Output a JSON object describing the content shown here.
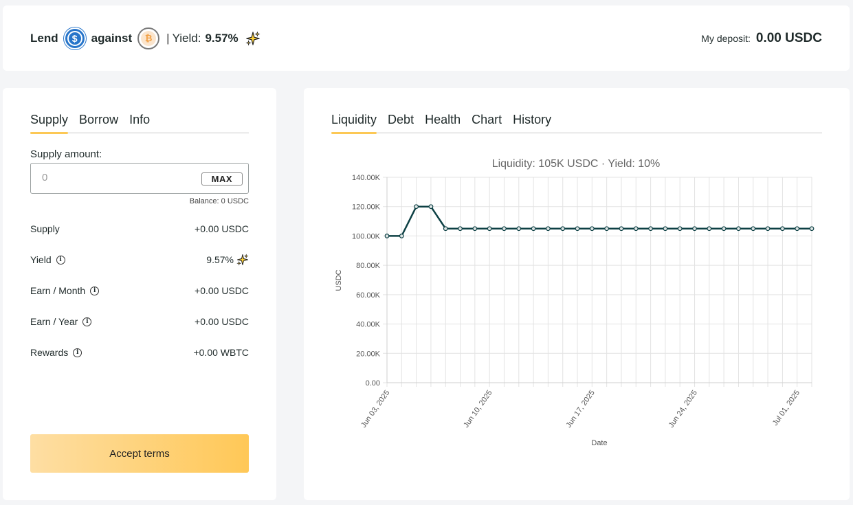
{
  "header": {
    "lend_label": "Lend",
    "against_label": "against",
    "separator": "|",
    "yield_label": "Yield:",
    "yield_value": "9.57%",
    "deposit_label": "My deposit:",
    "deposit_value": "0.00 USDC",
    "lend_token_icon": "usdc-coin-icon",
    "collateral_token_icon": "btc-coin-icon",
    "lend_token_glyph": "$",
    "collateral_token_glyph": "₿"
  },
  "left_panel": {
    "tabs": [
      {
        "label": "Supply",
        "active": true
      },
      {
        "label": "Borrow",
        "active": false
      },
      {
        "label": "Info",
        "active": false
      }
    ],
    "supply_label": "Supply amount:",
    "supply_input": {
      "value": "",
      "placeholder": "0"
    },
    "max_label": "MAX",
    "balance": "Balance: 0 USDC",
    "rows": [
      {
        "label": "Supply",
        "value": "+0.00 USDC"
      },
      {
        "label": "Yield",
        "value": "9.57%"
      },
      {
        "label": "Earn / Month",
        "value": "+0.00 USDC"
      },
      {
        "label": "Earn / Year",
        "value": "+0.00 USDC"
      },
      {
        "label": "Rewards",
        "value": "+0.00 WBTC"
      }
    ],
    "info_glyph": "i",
    "accept_label": "Accept terms"
  },
  "right_panel": {
    "tabs": [
      {
        "label": "Liquidity",
        "active": true
      },
      {
        "label": "Debt",
        "active": false
      },
      {
        "label": "Health",
        "active": false
      },
      {
        "label": "Chart",
        "active": false
      },
      {
        "label": "History",
        "active": false
      }
    ]
  },
  "colors": {
    "accent": "#fcc855",
    "line": "#0d4044",
    "usdc": "#2775ca",
    "btc": "#f2a045"
  },
  "chart_data": {
    "type": "line",
    "title": "Liquidity: 105K USDC · Yield: 10%",
    "xlabel": "Date",
    "ylabel": "USDC",
    "ylim": [
      0,
      140000
    ],
    "y_ticks": [
      "0.00",
      "20.00K",
      "40.00K",
      "60.00K",
      "80.00K",
      "100.00K",
      "120.00K",
      "140.00K"
    ],
    "x_tick_labels": [
      {
        "index": 0,
        "label": "Jun 03, 2025"
      },
      {
        "index": 7,
        "label": "Jun 10, 2025"
      },
      {
        "index": 14,
        "label": "Jun 17, 2025"
      },
      {
        "index": 21,
        "label": "Jun 24, 2025"
      },
      {
        "index": 28,
        "label": "Jul 01, 2025"
      }
    ],
    "grid": true,
    "series": [
      {
        "values": [
          100000,
          100000,
          120000,
          120000,
          105000,
          105000,
          105000,
          105000,
          105000,
          105000,
          105000,
          105000,
          105000,
          105000,
          105000,
          105000,
          105000,
          105000,
          105000,
          105000,
          105000,
          105000,
          105000,
          105000,
          105000,
          105000,
          105000,
          105000,
          105000,
          105000
        ]
      }
    ]
  }
}
